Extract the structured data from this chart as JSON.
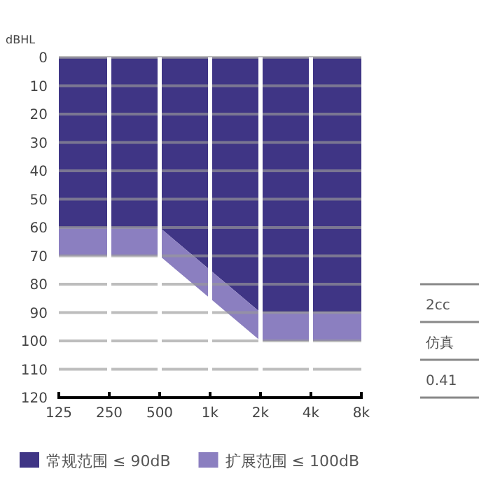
{
  "chart_data": {
    "type": "area",
    "stacked": true,
    "ylabel": "dBHL",
    "log": "x",
    "x": [
      125,
      250,
      500,
      1000,
      2000,
      4000,
      8000
    ],
    "series": [
      {
        "name": "常规范围 ≤ 90dB",
        "color": "#3f3585",
        "values": [
          60,
          60,
          60,
          75,
          90,
          90,
          90
        ]
      },
      {
        "name": "扩展范围 ≤ 100dB",
        "color": "#8b7fc0",
        "values": [
          10,
          10,
          10,
          10,
          10,
          10,
          10
        ]
      }
    ],
    "xlim": [
      125,
      8000
    ],
    "xticks": [
      125,
      250,
      500,
      {
        "value": 1000,
        "label": "1k"
      },
      {
        "value": 2000,
        "label": "2k"
      },
      {
        "value": 4000,
        "label": "4k"
      },
      {
        "value": 8000,
        "label": "8k"
      }
    ],
    "ylim": [
      120,
      0
    ],
    "yticks": [
      0,
      10,
      20,
      30,
      40,
      50,
      60,
      70,
      80,
      90,
      100,
      110,
      120
    ],
    "grid": true,
    "legend": "bottom",
    "annotations": [
      "2cc",
      "仿真",
      "0.41"
    ]
  }
}
